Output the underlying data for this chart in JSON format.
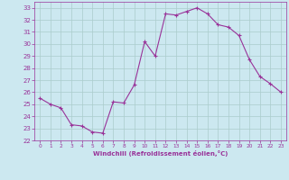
{
  "x": [
    0,
    1,
    2,
    3,
    4,
    5,
    6,
    7,
    8,
    9,
    10,
    11,
    12,
    13,
    14,
    15,
    16,
    17,
    18,
    19,
    20,
    21,
    22,
    23
  ],
  "y": [
    25.5,
    25.0,
    24.7,
    23.3,
    23.2,
    22.7,
    22.6,
    25.2,
    25.1,
    26.6,
    30.2,
    29.0,
    32.5,
    32.4,
    32.7,
    33.0,
    32.5,
    31.6,
    31.4,
    30.7,
    28.7,
    27.3,
    26.7,
    26.0
  ],
  "line_color": "#993399",
  "marker": "+",
  "marker_size": 3,
  "bg_color": "#cce8f0",
  "grid_color": "#aacccc",
  "xlabel": "Windchill (Refroidissement éolien,°C)",
  "xlabel_color": "#993399",
  "tick_color": "#993399",
  "spine_color": "#993399",
  "ylim": [
    22,
    33.5
  ],
  "xlim": [
    -0.5,
    23.5
  ],
  "yticks": [
    22,
    23,
    24,
    25,
    26,
    27,
    28,
    29,
    30,
    31,
    32,
    33
  ],
  "xticks": [
    0,
    1,
    2,
    3,
    4,
    5,
    6,
    7,
    8,
    9,
    10,
    11,
    12,
    13,
    14,
    15,
    16,
    17,
    18,
    19,
    20,
    21,
    22,
    23
  ],
  "figsize": [
    3.2,
    2.0
  ],
  "dpi": 100
}
